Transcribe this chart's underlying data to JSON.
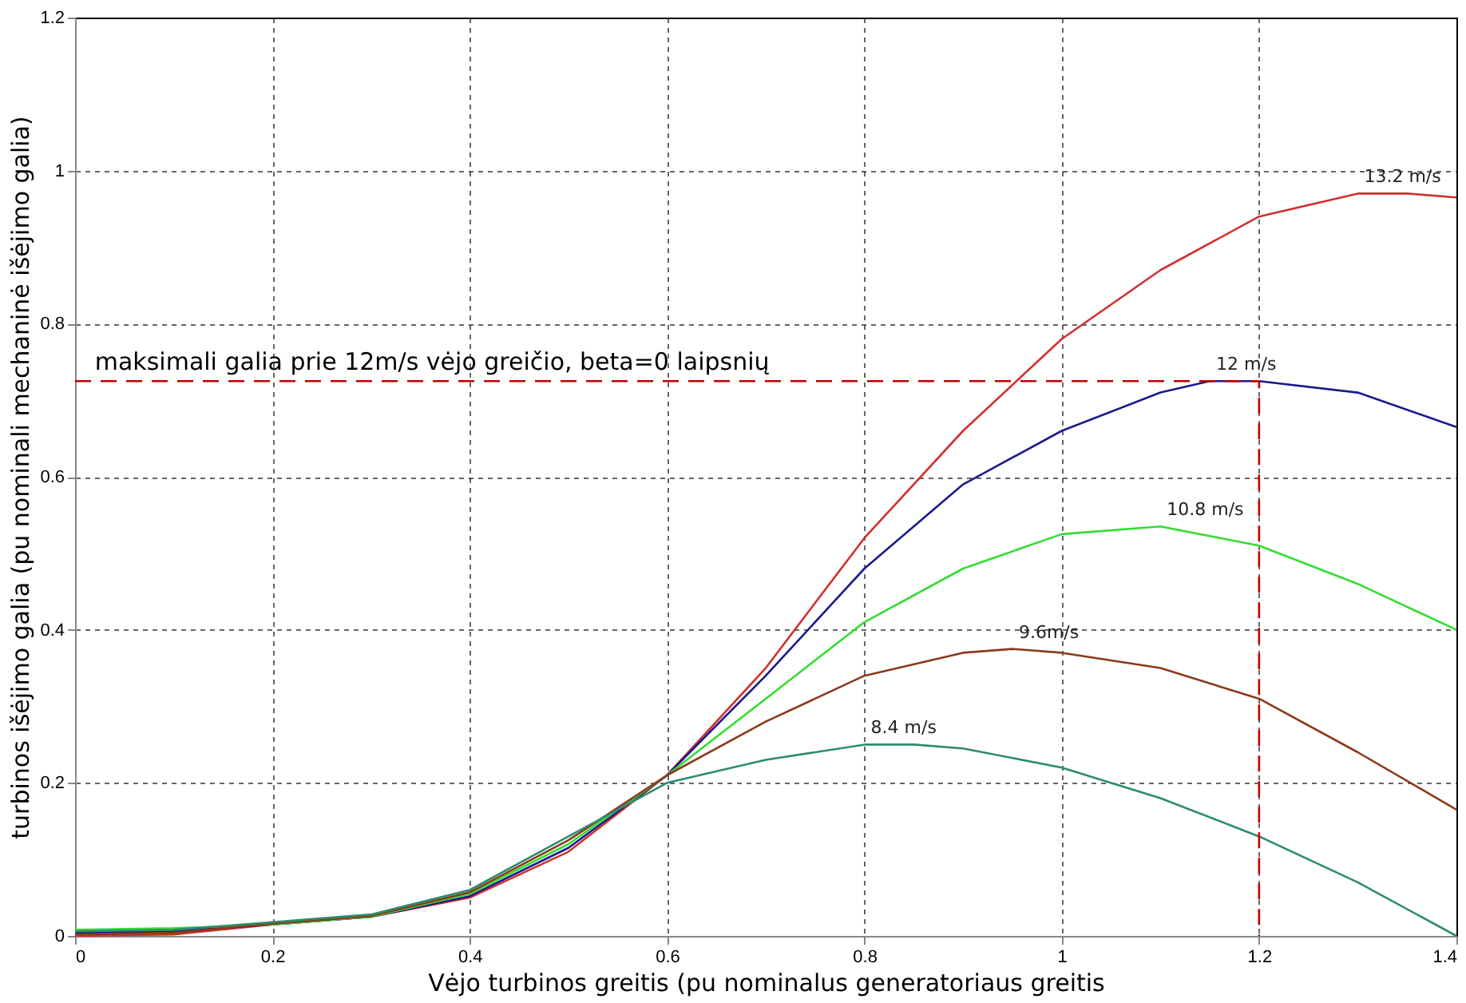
{
  "chart_data": {
    "type": "line",
    "xlabel": "Vėjo turbinos greitis (pu nominalus generatoriaus greitis",
    "ylabel": "turbinos išėjimo galia (pu nominali mechaninė išėjimo galia)",
    "xlim": [
      0,
      1.4
    ],
    "ylim": [
      0,
      1.2
    ],
    "xticks": [
      0,
      0.2,
      0.4,
      0.6,
      0.8,
      1,
      1.2,
      1.4
    ],
    "yticks": [
      0,
      0.2,
      0.4,
      0.6,
      0.8,
      1,
      1.2
    ],
    "grid": true,
    "marker": "none",
    "series": [
      {
        "name": "13.2 m/s",
        "color": "#d03030",
        "x": [
          0,
          0.1,
          0.2,
          0.3,
          0.4,
          0.5,
          0.6,
          0.7,
          0.8,
          0.9,
          1.0,
          1.1,
          1.2,
          1.3,
          1.35,
          1.4
        ],
        "values": [
          0,
          0.002,
          0.015,
          0.025,
          0.05,
          0.11,
          0.21,
          0.35,
          0.52,
          0.66,
          0.78,
          0.87,
          0.94,
          0.97,
          0.97,
          0.965
        ]
      },
      {
        "name": "12 m/s",
        "color": "#1a1a8c",
        "x": [
          0,
          0.1,
          0.2,
          0.3,
          0.4,
          0.5,
          0.6,
          0.7,
          0.8,
          0.9,
          1.0,
          1.1,
          1.15,
          1.2,
          1.3,
          1.4
        ],
        "values": [
          0.004,
          0.006,
          0.015,
          0.025,
          0.052,
          0.115,
          0.21,
          0.34,
          0.48,
          0.59,
          0.66,
          0.71,
          0.725,
          0.725,
          0.71,
          0.665
        ]
      },
      {
        "name": "10.8 m/s",
        "color": "#33dd33",
        "x": [
          0,
          0.1,
          0.2,
          0.3,
          0.4,
          0.5,
          0.6,
          0.7,
          0.8,
          0.9,
          1.0,
          1.1,
          1.2,
          1.3,
          1.4
        ],
        "values": [
          0.008,
          0.01,
          0.015,
          0.025,
          0.055,
          0.12,
          0.21,
          0.31,
          0.41,
          0.48,
          0.525,
          0.535,
          0.51,
          0.46,
          0.4
        ]
      },
      {
        "name": "9.6m/s",
        "color": "#8b3a1a",
        "x": [
          0,
          0.1,
          0.2,
          0.3,
          0.4,
          0.5,
          0.6,
          0.7,
          0.8,
          0.9,
          0.95,
          1.0,
          1.1,
          1.2,
          1.3,
          1.4
        ],
        "values": [
          0.002,
          0.004,
          0.016,
          0.026,
          0.057,
          0.125,
          0.21,
          0.28,
          0.34,
          0.37,
          0.375,
          0.37,
          0.35,
          0.31,
          0.24,
          0.165
        ]
      },
      {
        "name": "8.4 m/s",
        "color": "#2e8b6e",
        "x": [
          0,
          0.1,
          0.2,
          0.3,
          0.4,
          0.5,
          0.6,
          0.7,
          0.8,
          0.85,
          0.9,
          1.0,
          1.1,
          1.2,
          1.3,
          1.4
        ],
        "values": [
          0.006,
          0.008,
          0.018,
          0.028,
          0.06,
          0.13,
          0.2,
          0.23,
          0.25,
          0.25,
          0.245,
          0.22,
          0.18,
          0.13,
          0.07,
          0
        ]
      },
      {
        "color": "#c00000",
        "line_style": "dashed",
        "x": [
          0,
          1.2,
          1.2
        ],
        "values": [
          0.725,
          0.725,
          0
        ]
      }
    ],
    "annotations": [
      {
        "text": "maksimali galia prie 12m/s vėjo greičio, beta=0 laipsnių",
        "x": 0.02,
        "y": 0.725
      }
    ]
  }
}
